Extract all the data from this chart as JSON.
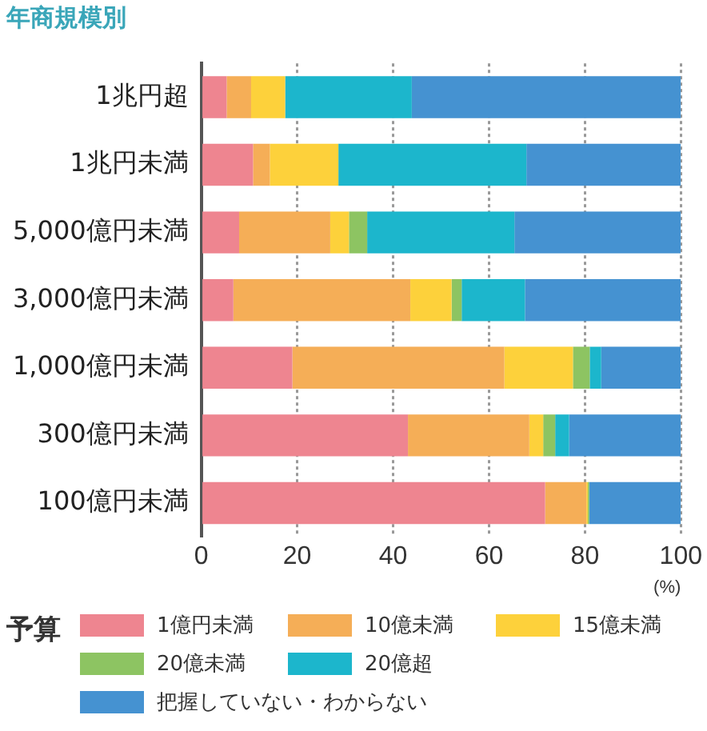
{
  "chart_data": {
    "type": "bar",
    "orientation": "horizontal",
    "stacked": true,
    "title": "年商規模別",
    "xlabel": "(%)",
    "legend_title": "予算",
    "legend": "bottom",
    "grid": "x",
    "categories": [
      "1兆円超",
      "1兆円未満",
      "5,000億円未満",
      "3,000億円未満",
      "1,000億円未満",
      "300億円未満",
      "100億円未満"
    ],
    "xlim": [
      0,
      100
    ],
    "xticks": [
      0,
      20,
      40,
      60,
      80,
      100
    ],
    "series": [
      {
        "name": "1億円未満",
        "color": "#ee8590",
        "values": [
          5.3,
          10.8,
          7.9,
          6.7,
          19.0,
          43.1,
          71.7
        ]
      },
      {
        "name": "10億未満",
        "color": "#f5ae57",
        "values": [
          5.1,
          3.5,
          19.0,
          36.9,
          44.2,
          25.3,
          8.6
        ]
      },
      {
        "name": "15億未満",
        "color": "#fdd13b",
        "values": [
          7.1,
          14.3,
          3.9,
          8.6,
          14.3,
          2.9,
          0.3
        ]
      },
      {
        "name": "20億未満",
        "color": "#8dc462",
        "values": [
          0,
          0,
          3.8,
          2.1,
          3.5,
          2.5,
          0.3
        ]
      },
      {
        "name": "20億超",
        "color": "#1cb6cc",
        "values": [
          26.4,
          39.2,
          30.7,
          13.2,
          2.4,
          2.9,
          0
        ]
      },
      {
        "name": "把握していない・わからない",
        "color": "#4592d1",
        "values": [
          56.1,
          32.2,
          34.7,
          32.5,
          16.6,
          23.3,
          19.1
        ]
      }
    ]
  }
}
